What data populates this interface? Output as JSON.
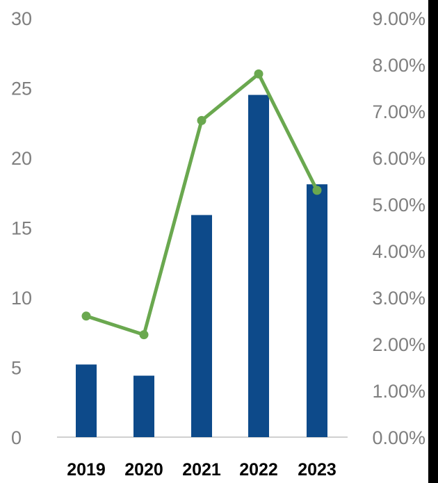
{
  "chart_data": {
    "type": "bar",
    "categories": [
      "2019",
      "2020",
      "2021",
      "2022",
      "2023"
    ],
    "series": [
      {
        "type": "bar",
        "axis": "left",
        "color": "#0d4a8a",
        "values": [
          5.2,
          4.4,
          15.9,
          24.5,
          18.1
        ]
      },
      {
        "type": "line",
        "axis": "right",
        "color": "#6aa84f",
        "values": [
          0.026,
          0.022,
          0.068,
          0.078,
          0.053
        ]
      }
    ],
    "y_left": {
      "range": [
        0,
        30
      ],
      "ticks": [
        "0",
        "5",
        "10",
        "15",
        "20",
        "25",
        "30"
      ]
    },
    "y_right": {
      "range": [
        0,
        0.09
      ],
      "ticks": [
        "0.00%",
        "1.00%",
        "2.00%",
        "3.00%",
        "4.00%",
        "5.00%",
        "6.00%",
        "7.00%",
        "8.00%",
        "9.00%"
      ]
    },
    "grid": false,
    "legend": "none",
    "title": "",
    "xlabel": "",
    "ylabel": ""
  }
}
